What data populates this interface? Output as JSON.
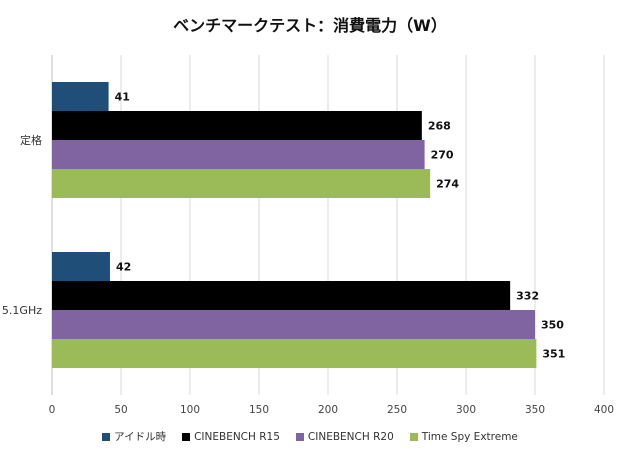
{
  "chart_data": {
    "type": "bar",
    "orientation": "horizontal",
    "title": "ベンチマークテスト：消費電力（W）",
    "categories": [
      "定格",
      "5.1GHz"
    ],
    "series": [
      {
        "name": "アイドル時",
        "values": [
          41,
          42
        ],
        "color": "#1f4e79"
      },
      {
        "name": "CINEBENCH R15",
        "values": [
          268,
          332
        ],
        "color": "#000000"
      },
      {
        "name": "CINEBENCH R20",
        "values": [
          270,
          350
        ],
        "color": "#8064a2"
      },
      {
        "name": "Time Spy Extreme",
        "values": [
          274,
          351
        ],
        "color": "#9bbb59"
      }
    ],
    "xlim": [
      0,
      400
    ],
    "xticks": [
      "0",
      "50",
      "100",
      "150",
      "200",
      "250",
      "300",
      "350",
      "400"
    ],
    "grid": true,
    "legend_position": "bottom"
  }
}
